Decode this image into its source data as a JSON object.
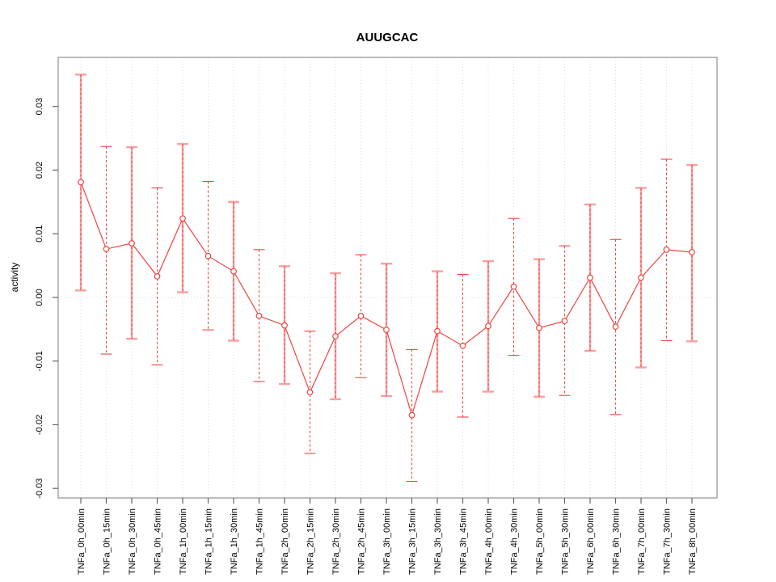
{
  "figure": {
    "background": "#ffffff"
  },
  "chart_data": {
    "type": "line",
    "title": "AUUGCAC",
    "xlabel": "",
    "ylabel": "activity",
    "ylim": [
      -0.0315,
      0.0377
    ],
    "yticks": {
      "values": [
        -0.03,
        -0.02,
        -0.01,
        0.0,
        0.01,
        0.02,
        0.03
      ],
      "labels": [
        "-0.03",
        "-0.02",
        "-0.01",
        "0.00",
        "0.01",
        "0.02",
        "0.03"
      ]
    },
    "grid": {
      "vertical_dotted_at_each_category": true,
      "horizontal_dotted_zero_line": true
    },
    "legend": "none",
    "categories": [
      "TNFa_0h_00min",
      "TNFa_0h_15min",
      "TNFa_0h_30min",
      "TNFa_0h_45min",
      "TNFa_1h_00min",
      "TNFa_1h_15min",
      "TNFa_1h_30min",
      "TNFa_1h_45min",
      "TNFa_2h_00min",
      "TNFa_2h_15min",
      "TNFa_2h_30min",
      "TNFa_2h_45min",
      "TNFa_3h_00min",
      "TNFa_3h_15min",
      "TNFa_3h_30min",
      "TNFa_3h_45min",
      "TNFa_4h_00min",
      "TNFa_4h_30min",
      "TNFa_5h_00min",
      "TNFa_5h_30min",
      "TNFa_6h_00min",
      "TNFa_6h_30min",
      "TNFa_7h_00min",
      "TNFa_7h_30min",
      "TNFa_8h_00min"
    ],
    "series": [
      {
        "name": "activity",
        "marker": "open-circle",
        "values": [
          0.0181,
          0.0076,
          0.0085,
          0.0033,
          0.0124,
          0.0065,
          0.0041,
          -0.0029,
          -0.0044,
          -0.0149,
          -0.0061,
          -0.0029,
          -0.0051,
          -0.0185,
          -0.0053,
          -0.0076,
          -0.0045,
          0.0017,
          -0.0048,
          -0.0037,
          0.0031,
          -0.0046,
          0.0031,
          0.0075,
          0.0071
        ],
        "ci_upper": [
          0.035,
          0.0237,
          0.0236,
          0.0172,
          0.0241,
          0.0182,
          0.015,
          0.0075,
          0.0049,
          -0.0053,
          0.0038,
          0.0067,
          0.0053,
          -0.0082,
          0.0041,
          0.0036,
          0.0057,
          0.0124,
          0.006,
          0.0081,
          0.0146,
          0.0091,
          0.0172,
          0.0217,
          0.0208
        ],
        "ci_lower": [
          0.0011,
          -0.0089,
          -0.0065,
          -0.0106,
          0.0008,
          -0.0051,
          -0.0068,
          -0.0132,
          -0.0136,
          -0.0245,
          -0.016,
          -0.0126,
          -0.0155,
          -0.0289,
          -0.0148,
          -0.0188,
          -0.0148,
          -0.0091,
          -0.0156,
          -0.0154,
          -0.0084,
          -0.0184,
          -0.011,
          -0.0068,
          -0.0069
        ],
        "error_bar_styles": [
          "pink-solid",
          "red-dashed",
          "pink-solid",
          "red-dashed",
          "pink-solid",
          "red-dashed",
          "pink-solid",
          "red-dashed",
          "pink-solid",
          "red-dashed",
          "pink-solid",
          "red-dashed",
          "pink-solid",
          "red-dashed",
          "pink-solid",
          "red-dashed",
          "pink-solid",
          "red-dashed",
          "pink-solid",
          "red-dashed",
          "pink-solid",
          "red-dashed",
          "pink-solid",
          "red-dashed",
          "pink-solid"
        ]
      }
    ],
    "colors": {
      "series": "#ee4540",
      "error_bar_pink": "#f8a09e",
      "grid": "#dcdcdc",
      "box": "#999999",
      "tick": "#666666",
      "text": "#000000"
    }
  }
}
